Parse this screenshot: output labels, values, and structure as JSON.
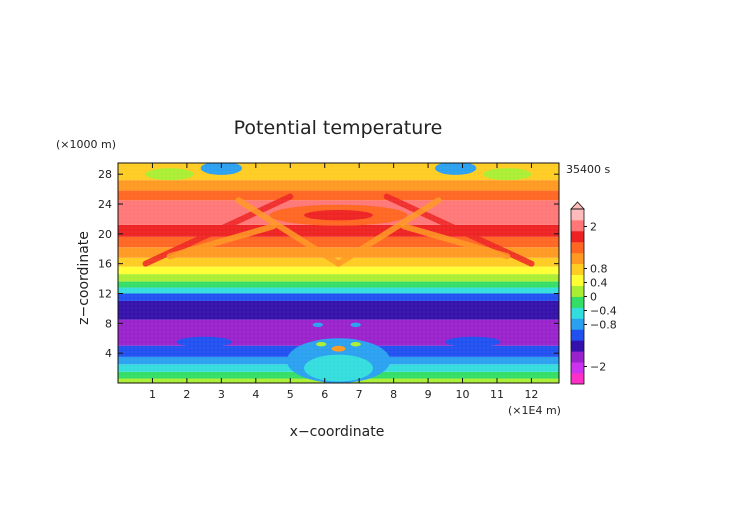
{
  "chart_data": {
    "type": "heatmap",
    "title": "Potential temperature",
    "xlabel": "x−coordinate",
    "ylabel": "z−coordinate",
    "x_unit": "(×1E4 m)",
    "y_unit": "(×1000 m)",
    "time_label": "35400 s",
    "xlim": [
      0,
      12.8
    ],
    "ylim": [
      0,
      29.5
    ],
    "x_ticks": [
      "1",
      "2",
      "3",
      "4",
      "5",
      "6",
      "7",
      "8",
      "9",
      "10",
      "11",
      "12"
    ],
    "y_ticks": [
      "4",
      "8",
      "12",
      "16",
      "20",
      "24",
      "28"
    ],
    "colorbar": {
      "levels": [
        {
          "label": "2",
          "value": 2
        },
        {
          "label": "0.8",
          "value": 0.8
        },
        {
          "label": "0.4",
          "value": 0.4
        },
        {
          "label": "0",
          "value": 0
        },
        {
          "label": "−0.4",
          "value": -0.4
        },
        {
          "label": "−0.8",
          "value": -0.8
        },
        {
          "label": "−2",
          "value": -2
        }
      ],
      "colors": [
        "#ff30c8",
        "#cc33ee",
        "#9922cc",
        "#3311aa",
        "#2050f0",
        "#2aa0f0",
        "#33dddd",
        "#33dd66",
        "#aaee33",
        "#ffff33",
        "#ffcc22",
        "#ff9922",
        "#ff6622",
        "#ee2222",
        "#ff7777",
        "#ffbbbb"
      ]
    },
    "bands": [
      {
        "zmin": 0.0,
        "zmax": 0.6,
        "color": "#aaee33"
      },
      {
        "zmin": 0.6,
        "zmax": 1.5,
        "color": "#33dd66"
      },
      {
        "zmin": 1.5,
        "zmax": 2.5,
        "color": "#33dddd"
      },
      {
        "zmin": 2.5,
        "zmax": 3.5,
        "color": "#2aa0f0"
      },
      {
        "zmin": 3.5,
        "zmax": 5.0,
        "color": "#2050f0"
      },
      {
        "zmin": 5.0,
        "zmax": 8.5,
        "color": "#9922cc"
      },
      {
        "zmin": 8.5,
        "zmax": 11.0,
        "color": "#3311aa"
      },
      {
        "zmin": 11.0,
        "zmax": 12.0,
        "color": "#2050f0"
      },
      {
        "zmin": 12.0,
        "zmax": 12.8,
        "color": "#33dddd"
      },
      {
        "zmin": 12.8,
        "zmax": 13.6,
        "color": "#33dd66"
      },
      {
        "zmin": 13.6,
        "zmax": 14.6,
        "color": "#aaee33"
      },
      {
        "zmin": 14.6,
        "zmax": 15.6,
        "color": "#ffff33"
      },
      {
        "zmin": 15.6,
        "zmax": 16.8,
        "color": "#ffcc22"
      },
      {
        "zmin": 16.8,
        "zmax": 18.2,
        "color": "#ff9922"
      },
      {
        "zmin": 18.2,
        "zmax": 19.6,
        "color": "#ff6622"
      },
      {
        "zmin": 19.6,
        "zmax": 21.2,
        "color": "#ee2222"
      },
      {
        "zmin": 21.2,
        "zmax": 24.5,
        "color": "#ff7777"
      },
      {
        "zmin": 24.5,
        "zmax": 25.8,
        "color": "#ff6622"
      },
      {
        "zmin": 25.8,
        "zmax": 27.2,
        "color": "#ff9922"
      },
      {
        "zmin": 27.2,
        "zmax": 29.5,
        "color": "#ffcc22"
      }
    ],
    "features": [
      {
        "kind": "blob",
        "x": 3.0,
        "z": 28.8,
        "rx": 0.6,
        "rz": 0.9,
        "color": "#2aa0f0"
      },
      {
        "kind": "blob",
        "x": 9.8,
        "z": 28.8,
        "rx": 0.6,
        "rz": 0.9,
        "color": "#2aa0f0"
      },
      {
        "kind": "blob",
        "x": 6.4,
        "z": 28.0,
        "rx": 0.6,
        "rz": 0.8,
        "color": "#ffcc22"
      },
      {
        "kind": "blob",
        "x": 1.5,
        "z": 28.0,
        "rx": 0.7,
        "rz": 0.8,
        "color": "#aaee33"
      },
      {
        "kind": "blob",
        "x": 11.3,
        "z": 28.0,
        "rx": 0.7,
        "rz": 0.8,
        "color": "#aaee33"
      },
      {
        "kind": "blob",
        "x": 6.4,
        "z": 22.5,
        "rx": 2.0,
        "rz": 1.4,
        "color": "#ff6622"
      },
      {
        "kind": "blob",
        "x": 6.4,
        "z": 22.5,
        "rx": 1.0,
        "rz": 0.7,
        "color": "#ee2222"
      },
      {
        "kind": "blob",
        "x": 6.4,
        "z": 3.0,
        "rx": 1.5,
        "rz": 3.0,
        "color": "#2aa0f0"
      },
      {
        "kind": "blob",
        "x": 6.4,
        "z": 2.0,
        "rx": 1.0,
        "rz": 1.8,
        "color": "#33dddd"
      },
      {
        "kind": "blob",
        "x": 6.4,
        "z": 4.6,
        "rx": 0.2,
        "rz": 0.4,
        "color": "#ff9922"
      },
      {
        "kind": "blob",
        "x": 5.9,
        "z": 5.2,
        "rx": 0.15,
        "rz": 0.3,
        "color": "#aaee33"
      },
      {
        "kind": "blob",
        "x": 6.9,
        "z": 5.2,
        "rx": 0.15,
        "rz": 0.3,
        "color": "#aaee33"
      },
      {
        "kind": "blob",
        "x": 5.8,
        "z": 7.8,
        "rx": 0.15,
        "rz": 0.3,
        "color": "#2aa0f0"
      },
      {
        "kind": "blob",
        "x": 6.9,
        "z": 7.8,
        "rx": 0.15,
        "rz": 0.3,
        "color": "#2aa0f0"
      },
      {
        "kind": "blob",
        "x": 2.5,
        "z": 5.5,
        "rx": 0.8,
        "rz": 0.7,
        "color": "#2050f0"
      },
      {
        "kind": "blob",
        "x": 10.3,
        "z": 5.5,
        "rx": 0.8,
        "rz": 0.7,
        "color": "#2050f0"
      },
      {
        "kind": "streak",
        "x1": 0.8,
        "z1": 16.0,
        "x2": 5.0,
        "z2": 25.0,
        "color": "#ee2222"
      },
      {
        "kind": "streak",
        "x1": 12.0,
        "z1": 16.0,
        "x2": 7.8,
        "z2": 25.0,
        "color": "#ee2222"
      },
      {
        "kind": "streak",
        "x1": 1.5,
        "z1": 17.0,
        "x2": 4.5,
        "z2": 21.0,
        "color": "#ff9922"
      },
      {
        "kind": "streak",
        "x1": 11.3,
        "z1": 17.0,
        "x2": 8.3,
        "z2": 21.0,
        "color": "#ff9922"
      },
      {
        "kind": "streak",
        "x1": 3.5,
        "z1": 24.5,
        "x2": 6.4,
        "z2": 16.0,
        "color": "#ff9922"
      },
      {
        "kind": "streak",
        "x1": 9.3,
        "z1": 24.5,
        "x2": 6.4,
        "z2": 16.0,
        "color": "#ff9922"
      }
    ]
  }
}
